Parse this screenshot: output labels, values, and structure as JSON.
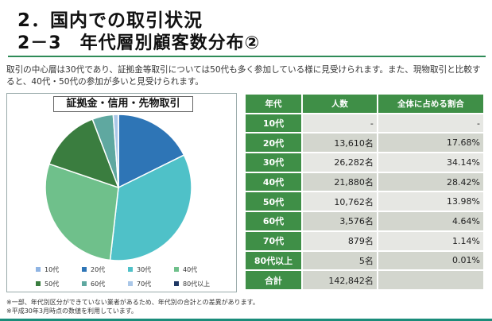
{
  "title_line1": "2．国内での取引状況",
  "title_line2": "2－3　年代層別顧客数分布②",
  "description": "取引の中心層は30代であり、証拠金等取引については50代も多く参加している様に見受けられます。また、現物取引と比較すると、40代・50代の参加が多いと見受けられます。",
  "chart_data": {
    "type": "pie",
    "title": "証拠金・信用・先物取引",
    "categories": [
      "10代",
      "20代",
      "30代",
      "40代",
      "50代",
      "60代",
      "70代",
      "80代以上"
    ],
    "values": [
      0,
      17.68,
      34.14,
      28.42,
      13.98,
      4.64,
      1.14,
      0.01
    ],
    "colors": [
      "#8fb4e3",
      "#2e75b6",
      "#4fc1c8",
      "#6fc08b",
      "#3a7d3f",
      "#5fa8a0",
      "#aac7e8",
      "#1f3864"
    ],
    "legend_position": "bottom"
  },
  "table": {
    "headers": [
      "年代",
      "人数",
      "全体に占める割合"
    ],
    "rows": [
      {
        "label": "10代",
        "count": "-",
        "share": "-"
      },
      {
        "label": "20代",
        "count": "13,610名",
        "share": "17.68%"
      },
      {
        "label": "30代",
        "count": "26,282名",
        "share": "34.14%"
      },
      {
        "label": "40代",
        "count": "21,880名",
        "share": "28.42%"
      },
      {
        "label": "50代",
        "count": "10,762名",
        "share": "13.98%"
      },
      {
        "label": "60代",
        "count": "3,576名",
        "share": "4.64%"
      },
      {
        "label": "70代",
        "count": "879名",
        "share": "1.14%"
      },
      {
        "label": "80代以上",
        "count": "5名",
        "share": "0.01%"
      }
    ],
    "total": {
      "label": "合計",
      "count": "142,842名",
      "share": ""
    }
  },
  "footnotes": [
    "※一部、年代別区分ができていない業者があるため、年代別の合計との差異があります。",
    "※平成30年3月時点の数値を利用しています。"
  ]
}
